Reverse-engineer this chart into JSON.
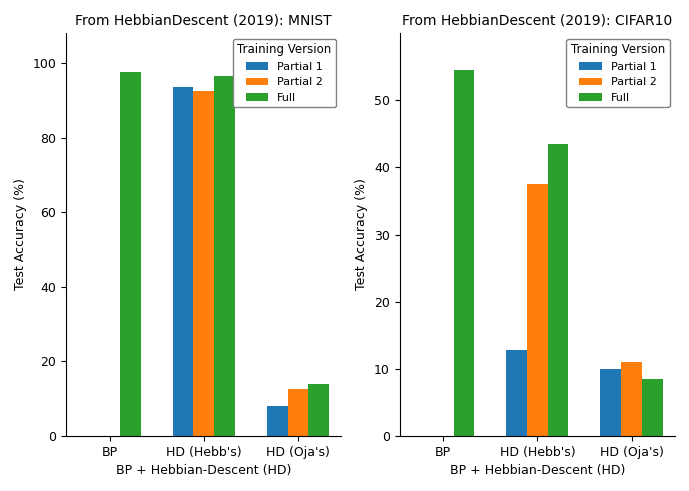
{
  "mnist": {
    "title": "From HebbianDescent (2019): MNIST",
    "categories": [
      "BP",
      "HD (Hebb's)",
      "HD (Oja's)"
    ],
    "xlabel": "BP + Hebbian-Descent (HD)",
    "ylabel": "Test Accuracy (%)",
    "partial1": [
      0,
      93.5,
      8.0
    ],
    "partial2": [
      0,
      92.5,
      12.5
    ],
    "full": [
      97.5,
      96.5,
      14.0
    ],
    "yticks": [
      0,
      20,
      40,
      60,
      80,
      100
    ],
    "ylim": [
      0,
      108
    ]
  },
  "cifar10": {
    "title": "From HebbianDescent (2019): CIFAR10",
    "categories": [
      "BP",
      "HD (Hebb's)",
      "HD (Oja's)"
    ],
    "xlabel": "BP + Hebbian-Descent (HD)",
    "ylabel": "Test Accuracy (%)",
    "partial1": [
      0,
      12.8,
      9.9
    ],
    "partial2": [
      0,
      37.5,
      11.0
    ],
    "full": [
      54.5,
      43.5,
      8.5
    ],
    "yticks": [
      0,
      10,
      20,
      30,
      40,
      50
    ],
    "ylim": [
      0,
      60
    ]
  },
  "colors": {
    "partial1": "#1f77b4",
    "partial2": "#ff7f0e",
    "full": "#2ca02c"
  },
  "legend_title": "Training Version",
  "legend_labels": [
    "Partial 1",
    "Partial 2",
    "Full"
  ],
  "bar_width": 0.22,
  "figsize": [
    6.89,
    4.91
  ],
  "dpi": 100
}
